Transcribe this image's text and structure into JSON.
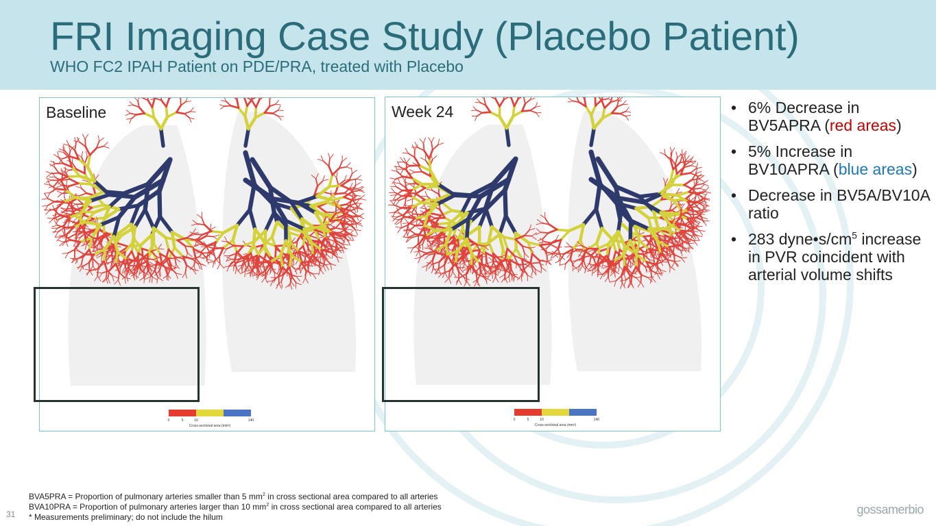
{
  "header": {
    "title": "FRI Imaging Case Study (Placebo Patient)",
    "subtitle": "WHO FC2 IPAH Patient on PDE/PRA, treated with Placebo"
  },
  "panels": [
    {
      "label": "Baseline",
      "scale": {
        "ticks": [
          "0",
          "5",
          "10",
          "140"
        ],
        "caption": "Cross-sectional area (mm²)"
      }
    },
    {
      "label": "Week 24",
      "scale": {
        "ticks": [
          "0",
          "5",
          "10",
          "140"
        ],
        "caption": "Cross-sectional area (mm²)"
      }
    }
  ],
  "bullets": [
    [
      "6% Decrease in BV5APRA (",
      "red areas",
      ")"
    ],
    [
      "5% Increase in BV10APRA (",
      "blue areas",
      ")"
    ],
    [
      "Decrease in BV5A/BV10A ratio"
    ],
    [
      "283 dyne•s/cm",
      "5",
      " increase in PVR coincident with arterial volume shifts"
    ]
  ],
  "footnotes": [
    [
      "BVA5PRA = Proportion of pulmonary arteries smaller than 5 mm",
      "2",
      " in cross sectional area compared to all arteries"
    ],
    [
      "BVA10PRA = Proportion of pulmonary arteries larger than 10 mm",
      "2",
      " in cross sectional area compared to all arteries"
    ],
    [
      "* Measurements preliminary; do not include the hilum"
    ]
  ],
  "page_number": "31",
  "logo": "gossamerbio"
}
